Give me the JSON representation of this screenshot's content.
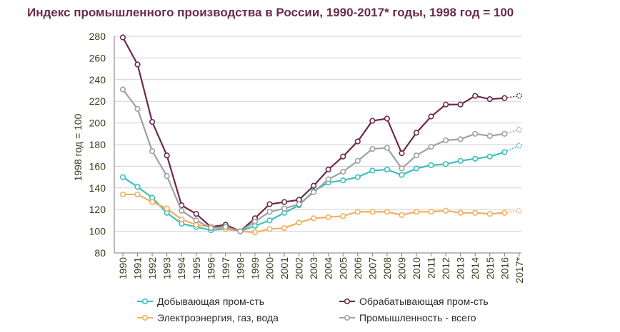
{
  "chart_data": {
    "type": "line",
    "title": "Индекс промышленного производства в России, 1990-2017* годы, 1998 год = 100",
    "ylabel": "1998 год = 100",
    "xlabel": "",
    "ylim": [
      80,
      280
    ],
    "yticks": [
      80,
      100,
      120,
      140,
      160,
      180,
      200,
      220,
      240,
      260,
      280
    ],
    "categories": [
      "1990",
      "1991",
      "1992",
      "1993",
      "1994",
      "1995",
      "1996",
      "1997",
      "1998",
      "1999",
      "2000",
      "2001",
      "2002",
      "2003",
      "2004",
      "2005",
      "2006",
      "2007",
      "2008",
      "2009",
      "2010",
      "2011",
      "2012",
      "2013",
      "2014",
      "2015",
      "2016",
      "2017*"
    ],
    "grid": "horizontal",
    "legend_position": "bottom",
    "series": [
      {
        "name": "Добывающая пром-сть",
        "color": "#3bbfbf",
        "values": [
          150,
          141,
          131,
          117,
          107,
          104,
          101,
          102,
          100,
          105,
          110,
          117,
          124,
          137,
          145,
          147,
          150,
          156,
          157,
          152,
          158,
          161,
          162,
          165,
          167,
          169,
          173,
          179
        ]
      },
      {
        "name": "Обрабатывающая пром-сть",
        "color": "#6b2a4a",
        "values": [
          279,
          254,
          201,
          170,
          124,
          116,
          104,
          106,
          100,
          112,
          125,
          127,
          129,
          142,
          157,
          169,
          183,
          202,
          204,
          172,
          191,
          206,
          217,
          217,
          225,
          222,
          223,
          225
        ]
      },
      {
        "name": "Электроэнергия, газ, вода",
        "color": "#f0b060",
        "values": [
          134,
          134,
          127,
          121,
          111,
          106,
          104,
          102,
          100,
          99,
          102,
          103,
          108,
          112,
          113,
          114,
          118,
          118,
          118,
          115,
          118,
          118,
          119,
          117,
          117,
          116,
          117,
          119
        ]
      },
      {
        "name": "Промышленность - всего",
        "color": "#a0a0a0",
        "values": [
          231,
          213,
          174,
          151,
          119,
          110,
          103,
          104,
          100,
          109,
          118,
          121,
          125,
          136,
          148,
          155,
          165,
          176,
          177,
          158,
          170,
          178,
          184,
          185,
          190,
          188,
          190,
          194
        ]
      }
    ]
  }
}
